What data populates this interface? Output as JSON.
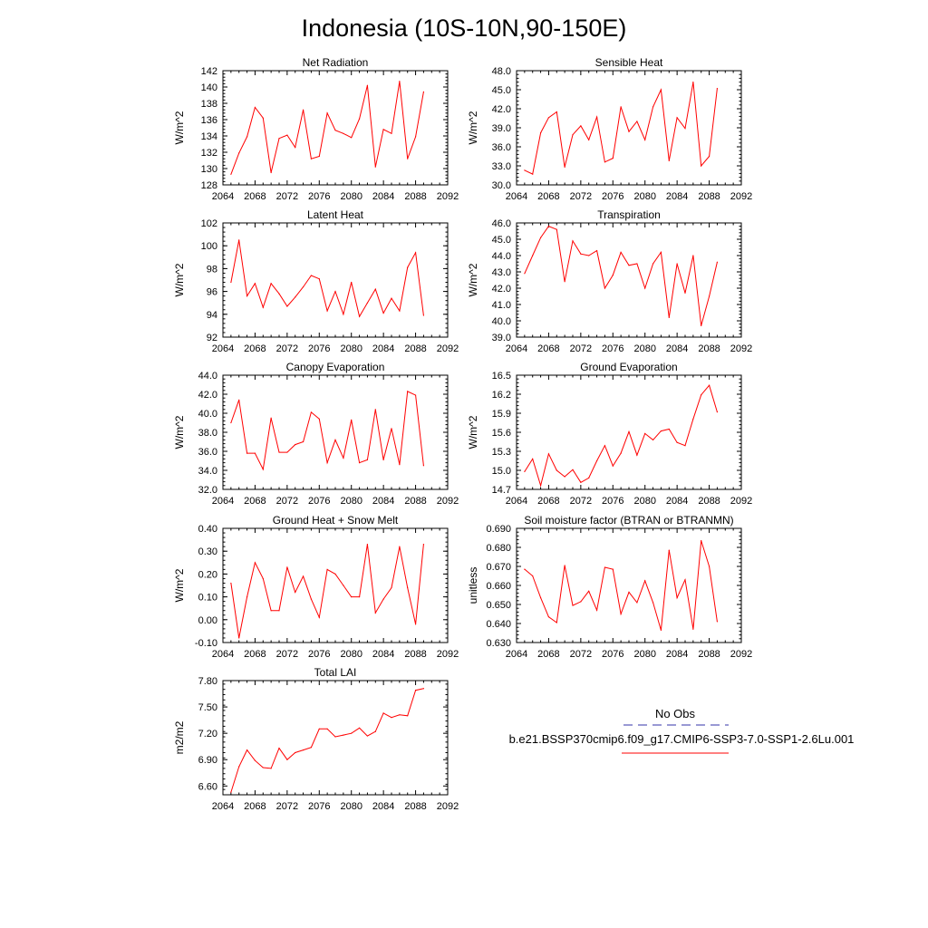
{
  "figure_title": "Indonesia (10S-10N,90-150E)",
  "legend": {
    "entries": [
      {
        "label": "No Obs",
        "color": "#3333aa",
        "style": "dashed"
      },
      {
        "label": "b.e21.BSSP370cmip6.f09_g17.CMIP6-SSP3-7.0-SSP1-2.6Lu.001",
        "color": "#ff0000",
        "style": "solid"
      }
    ]
  },
  "chart_data": [
    {
      "type": "line",
      "title": "Net Radiation",
      "ylabel": "W/m^2",
      "xlabel": "",
      "xlim": [
        2064,
        2092
      ],
      "ylim": [
        128,
        142
      ],
      "xticks": [
        "2064",
        "2068",
        "2072",
        "2076",
        "2080",
        "2084",
        "2088",
        "2092"
      ],
      "yticks": [
        "128",
        "130",
        "132",
        "134",
        "136",
        "138",
        "140",
        "142"
      ],
      "x": [
        2065,
        2066,
        2067,
        2068,
        2069,
        2070,
        2071,
        2072,
        2073,
        2074,
        2075,
        2076,
        2077,
        2078,
        2079,
        2080,
        2081,
        2082,
        2083,
        2084,
        2085,
        2086,
        2087,
        2088,
        2089
      ],
      "series": [
        {
          "color": "#ff0000",
          "values": [
            129.3,
            131.9,
            133.9,
            137.5,
            136.2,
            129.5,
            133.7,
            134.1,
            132.6,
            137.2,
            131.2,
            131.5,
            136.8,
            134.7,
            134.3,
            133.8,
            136.1,
            140.2,
            130.2,
            134.8,
            134.3,
            140.7,
            131.2,
            133.9,
            139.4
          ]
        }
      ]
    },
    {
      "type": "line",
      "title": "Sensible Heat",
      "ylabel": "W/m^2",
      "xlabel": "",
      "xlim": [
        2064,
        2092
      ],
      "ylim": [
        30,
        48
      ],
      "xticks": [
        "2064",
        "2068",
        "2072",
        "2076",
        "2080",
        "2084",
        "2088",
        "2092"
      ],
      "yticks": [
        "30.0",
        "33.0",
        "36.0",
        "39.0",
        "42.0",
        "45.0",
        "48.0"
      ],
      "x": [
        2065,
        2066,
        2067,
        2068,
        2069,
        2070,
        2071,
        2072,
        2073,
        2074,
        2075,
        2076,
        2077,
        2078,
        2079,
        2080,
        2081,
        2082,
        2083,
        2084,
        2085,
        2086,
        2087,
        2088,
        2089
      ],
      "series": [
        {
          "color": "#ff0000",
          "values": [
            32.3,
            31.7,
            38.2,
            40.6,
            41.5,
            32.8,
            37.9,
            39.3,
            37.1,
            40.7,
            33.6,
            34.2,
            42.3,
            38.4,
            40.0,
            37.1,
            42.3,
            45.0,
            33.8,
            40.6,
            38.9,
            46.2,
            33.0,
            34.5,
            45.2
          ]
        }
      ]
    },
    {
      "type": "line",
      "title": "Latent Heat",
      "ylabel": "W/m^2",
      "xlabel": "",
      "xlim": [
        2064,
        2092
      ],
      "ylim": [
        92,
        102
      ],
      "xticks": [
        "2064",
        "2068",
        "2072",
        "2076",
        "2080",
        "2084",
        "2088",
        "2092"
      ],
      "yticks": [
        "92",
        "94",
        "96",
        "98",
        "100",
        "102"
      ],
      "x": [
        2065,
        2066,
        2067,
        2068,
        2069,
        2070,
        2071,
        2072,
        2073,
        2074,
        2075,
        2076,
        2077,
        2078,
        2079,
        2080,
        2081,
        2082,
        2083,
        2084,
        2085,
        2086,
        2087,
        2088,
        2089
      ],
      "series": [
        {
          "color": "#ff0000",
          "values": [
            96.8,
            100.5,
            95.6,
            96.7,
            94.6,
            96.7,
            95.8,
            94.7,
            95.5,
            96.4,
            97.4,
            97.1,
            94.3,
            96.0,
            94.0,
            96.8,
            93.8,
            95.0,
            96.2,
            94.1,
            95.4,
            94.3,
            98.1,
            99.4,
            93.9
          ]
        }
      ]
    },
    {
      "type": "line",
      "title": "Transpiration",
      "ylabel": "W/m^2",
      "xlabel": "",
      "xlim": [
        2064,
        2092
      ],
      "ylim": [
        39,
        46
      ],
      "xticks": [
        "2064",
        "2068",
        "2072",
        "2076",
        "2080",
        "2084",
        "2088",
        "2092"
      ],
      "yticks": [
        "39.0",
        "40.0",
        "41.0",
        "42.0",
        "43.0",
        "44.0",
        "45.0",
        "46.0"
      ],
      "x": [
        2065,
        2066,
        2067,
        2068,
        2069,
        2070,
        2071,
        2072,
        2073,
        2074,
        2075,
        2076,
        2077,
        2078,
        2079,
        2080,
        2081,
        2082,
        2083,
        2084,
        2085,
        2086,
        2087,
        2088,
        2089
      ],
      "series": [
        {
          "color": "#ff0000",
          "values": [
            42.9,
            44.0,
            45.1,
            45.8,
            45.6,
            42.4,
            44.9,
            44.1,
            44.0,
            44.3,
            42.0,
            42.8,
            44.2,
            43.4,
            43.5,
            42.0,
            43.5,
            44.2,
            40.2,
            43.5,
            41.7,
            44.0,
            39.7,
            41.5,
            43.6
          ]
        }
      ]
    },
    {
      "type": "line",
      "title": "Canopy Evaporation",
      "ylabel": "W/m^2",
      "xlabel": "",
      "xlim": [
        2064,
        2092
      ],
      "ylim": [
        32,
        44
      ],
      "xticks": [
        "2064",
        "2068",
        "2072",
        "2076",
        "2080",
        "2084",
        "2088",
        "2092"
      ],
      "yticks": [
        "32.0",
        "34.0",
        "36.0",
        "38.0",
        "40.0",
        "42.0",
        "44.0"
      ],
      "x": [
        2065,
        2066,
        2067,
        2068,
        2069,
        2070,
        2071,
        2072,
        2073,
        2074,
        2075,
        2076,
        2077,
        2078,
        2079,
        2080,
        2081,
        2082,
        2083,
        2084,
        2085,
        2086,
        2087,
        2088,
        2089
      ],
      "series": [
        {
          "color": "#ff0000",
          "values": [
            39.0,
            41.4,
            35.8,
            35.8,
            34.1,
            39.5,
            35.9,
            35.9,
            36.7,
            37.0,
            40.1,
            39.4,
            34.8,
            37.2,
            35.3,
            39.3,
            34.8,
            35.1,
            40.4,
            35.1,
            38.4,
            34.6,
            42.3,
            41.9,
            34.5
          ]
        }
      ]
    },
    {
      "type": "line",
      "title": "Ground Evaporation",
      "ylabel": "W/m^2",
      "xlabel": "",
      "xlim": [
        2064,
        2092
      ],
      "ylim": [
        14.7,
        16.5
      ],
      "xticks": [
        "2064",
        "2068",
        "2072",
        "2076",
        "2080",
        "2084",
        "2088",
        "2092"
      ],
      "yticks": [
        "14.7",
        "15.0",
        "15.3",
        "15.6",
        "15.9",
        "16.2",
        "16.5"
      ],
      "x": [
        2065,
        2066,
        2067,
        2068,
        2069,
        2070,
        2071,
        2072,
        2073,
        2074,
        2075,
        2076,
        2077,
        2078,
        2079,
        2080,
        2081,
        2082,
        2083,
        2084,
        2085,
        2086,
        2087,
        2088,
        2089
      ],
      "series": [
        {
          "color": "#ff0000",
          "values": [
            14.98,
            15.18,
            14.76,
            15.26,
            15.0,
            14.9,
            15.01,
            14.81,
            14.88,
            15.15,
            15.39,
            15.07,
            15.27,
            15.61,
            15.24,
            15.58,
            15.48,
            15.62,
            15.65,
            15.44,
            15.39,
            15.81,
            16.19,
            16.34,
            15.92
          ]
        }
      ]
    },
    {
      "type": "line",
      "title": "Ground Heat + Snow Melt",
      "ylabel": "W/m^2",
      "xlabel": "",
      "xlim": [
        2064,
        2092
      ],
      "ylim": [
        -0.1,
        0.4
      ],
      "xticks": [
        "2064",
        "2068",
        "2072",
        "2076",
        "2080",
        "2084",
        "2088",
        "2092"
      ],
      "yticks": [
        "-0.10",
        "0.00",
        "0.10",
        "0.20",
        "0.30",
        "0.40"
      ],
      "x": [
        2065,
        2066,
        2067,
        2068,
        2069,
        2070,
        2071,
        2072,
        2073,
        2074,
        2075,
        2076,
        2077,
        2078,
        2079,
        2080,
        2081,
        2082,
        2083,
        2084,
        2085,
        2086,
        2087,
        2088,
        2089
      ],
      "series": [
        {
          "color": "#ff0000",
          "values": [
            0.16,
            -0.08,
            0.1,
            0.25,
            0.18,
            0.04,
            0.04,
            0.23,
            0.12,
            0.19,
            0.09,
            0.01,
            0.22,
            0.2,
            0.15,
            0.1,
            0.1,
            0.33,
            0.03,
            0.09,
            0.14,
            0.32,
            0.14,
            -0.02,
            0.33
          ]
        }
      ]
    },
    {
      "type": "line",
      "title": "Soil moisture factor (BTRAN or BTRANMN)",
      "ylabel": "unitless",
      "xlabel": "",
      "xlim": [
        2064,
        2092
      ],
      "ylim": [
        0.63,
        0.69
      ],
      "xticks": [
        "2064",
        "2068",
        "2072",
        "2076",
        "2080",
        "2084",
        "2088",
        "2092"
      ],
      "yticks": [
        "0.630",
        "0.640",
        "0.650",
        "0.660",
        "0.670",
        "0.680",
        "0.690"
      ],
      "x": [
        2065,
        2066,
        2067,
        2068,
        2069,
        2070,
        2071,
        2072,
        2073,
        2074,
        2075,
        2076,
        2077,
        2078,
        2079,
        2080,
        2081,
        2082,
        2083,
        2084,
        2085,
        2086,
        2087,
        2088,
        2089
      ],
      "series": [
        {
          "color": "#ff0000",
          "values": [
            0.6685,
            0.665,
            0.6535,
            0.6435,
            0.6405,
            0.6705,
            0.6495,
            0.6515,
            0.657,
            0.647,
            0.6695,
            0.6685,
            0.645,
            0.6565,
            0.651,
            0.6625,
            0.651,
            0.6365,
            0.6785,
            0.6535,
            0.663,
            0.637,
            0.6835,
            0.67,
            0.641
          ]
        }
      ]
    },
    {
      "type": "line",
      "title": "Total LAI",
      "ylabel": "m2/m2",
      "xlabel": "",
      "xlim": [
        2064,
        2092
      ],
      "ylim": [
        6.5,
        7.8
      ],
      "xticks": [
        "2064",
        "2068",
        "2072",
        "2076",
        "2080",
        "2084",
        "2088",
        "2092"
      ],
      "yticks": [
        "6.60",
        "6.90",
        "7.20",
        "7.50",
        "7.80"
      ],
      "x": [
        2065,
        2066,
        2067,
        2068,
        2069,
        2070,
        2071,
        2072,
        2073,
        2074,
        2075,
        2076,
        2077,
        2078,
        2079,
        2080,
        2081,
        2082,
        2083,
        2084,
        2085,
        2086,
        2087,
        2088,
        2089
      ],
      "series": [
        {
          "color": "#ff0000",
          "values": [
            6.53,
            6.82,
            7.01,
            6.89,
            6.81,
            6.8,
            7.03,
            6.9,
            6.98,
            7.01,
            7.04,
            7.25,
            7.25,
            7.16,
            7.18,
            7.2,
            7.26,
            7.17,
            7.22,
            7.43,
            7.38,
            7.41,
            7.4,
            7.69,
            7.71
          ]
        }
      ]
    }
  ]
}
